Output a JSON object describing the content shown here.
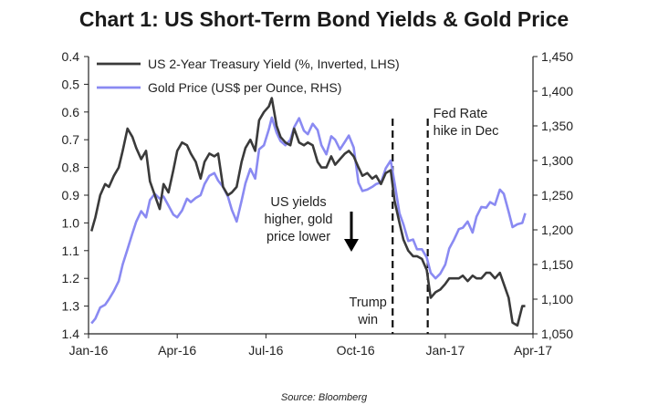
{
  "chart_data": {
    "type": "line",
    "title": "Chart 1: US Short-Term Bond Yields & Gold Price",
    "source": "Source: Bloomberg",
    "x_tick_labels": [
      "Jan-16",
      "Apr-16",
      "Jul-16",
      "Oct-16",
      "Jan-17",
      "Apr-17"
    ],
    "x_tick_dates": [
      "2016-01-01",
      "2016-04-01",
      "2016-07-01",
      "2016-10-01",
      "2017-01-01",
      "2017-04-01"
    ],
    "xlim": [
      "2016-01-01",
      "2017-04-01"
    ],
    "left_axis": {
      "inverted": true,
      "ylim": [
        0.4,
        1.4
      ],
      "tick_labels": [
        "0.4",
        "0.5",
        "0.6",
        "0.7",
        "0.8",
        "0.9",
        "1.0",
        "1.1",
        "1.2",
        "1.3",
        "1.4"
      ],
      "ticks": [
        0.4,
        0.5,
        0.6,
        0.7,
        0.8,
        0.9,
        1.0,
        1.1,
        1.2,
        1.3,
        1.4
      ]
    },
    "right_axis": {
      "ylim": [
        1050,
        1450
      ],
      "tick_labels": [
        "1,050",
        "1,100",
        "1,150",
        "1,200",
        "1,250",
        "1,300",
        "1,350",
        "1,400",
        "1,450"
      ],
      "ticks": [
        1050,
        1100,
        1150,
        1200,
        1250,
        1300,
        1350,
        1400,
        1450
      ]
    },
    "legend_placement": "top-left",
    "grid": false,
    "series": [
      {
        "name": "US 2-Year Treasury Yield (%, Inverted, LHS)",
        "axis": "left",
        "color": "#3a3a3a",
        "points": [
          [
            "2016-01-04",
            1.03
          ],
          [
            "2016-01-08",
            0.98
          ],
          [
            "2016-01-13",
            0.9
          ],
          [
            "2016-01-18",
            0.86
          ],
          [
            "2016-01-22",
            0.87
          ],
          [
            "2016-01-27",
            0.83
          ],
          [
            "2016-02-01",
            0.8
          ],
          [
            "2016-02-05",
            0.74
          ],
          [
            "2016-02-10",
            0.66
          ],
          [
            "2016-02-15",
            0.69
          ],
          [
            "2016-02-19",
            0.73
          ],
          [
            "2016-02-24",
            0.77
          ],
          [
            "2016-02-29",
            0.74
          ],
          [
            "2016-03-04",
            0.85
          ],
          [
            "2016-03-09",
            0.9
          ],
          [
            "2016-03-14",
            0.95
          ],
          [
            "2016-03-18",
            0.86
          ],
          [
            "2016-03-23",
            0.89
          ],
          [
            "2016-03-28",
            0.81
          ],
          [
            "2016-04-01",
            0.74
          ],
          [
            "2016-04-06",
            0.71
          ],
          [
            "2016-04-11",
            0.72
          ],
          [
            "2016-04-15",
            0.75
          ],
          [
            "2016-04-20",
            0.78
          ],
          [
            "2016-04-25",
            0.84
          ],
          [
            "2016-04-29",
            0.78
          ],
          [
            "2016-05-04",
            0.75
          ],
          [
            "2016-05-09",
            0.76
          ],
          [
            "2016-05-13",
            0.75
          ],
          [
            "2016-05-18",
            0.87
          ],
          [
            "2016-05-23",
            0.9
          ],
          [
            "2016-05-27",
            0.89
          ],
          [
            "2016-06-01",
            0.87
          ],
          [
            "2016-06-06",
            0.78
          ],
          [
            "2016-06-10",
            0.73
          ],
          [
            "2016-06-15",
            0.7
          ],
          [
            "2016-06-20",
            0.74
          ],
          [
            "2016-06-24",
            0.63
          ],
          [
            "2016-06-29",
            0.6
          ],
          [
            "2016-07-04",
            0.58
          ],
          [
            "2016-07-07",
            0.55
          ],
          [
            "2016-07-12",
            0.65
          ],
          [
            "2016-07-16",
            0.69
          ],
          [
            "2016-07-21",
            0.71
          ],
          [
            "2016-07-26",
            0.72
          ],
          [
            "2016-07-30",
            0.66
          ],
          [
            "2016-08-04",
            0.71
          ],
          [
            "2016-08-09",
            0.72
          ],
          [
            "2016-08-13",
            0.71
          ],
          [
            "2016-08-18",
            0.72
          ],
          [
            "2016-08-23",
            0.78
          ],
          [
            "2016-08-27",
            0.8
          ],
          [
            "2016-09-01",
            0.8
          ],
          [
            "2016-09-06",
            0.76
          ],
          [
            "2016-09-10",
            0.79
          ],
          [
            "2016-09-15",
            0.77
          ],
          [
            "2016-09-20",
            0.75
          ],
          [
            "2016-09-24",
            0.74
          ],
          [
            "2016-09-29",
            0.76
          ],
          [
            "2016-10-04",
            0.8
          ],
          [
            "2016-10-08",
            0.83
          ],
          [
            "2016-10-13",
            0.82
          ],
          [
            "2016-10-18",
            0.84
          ],
          [
            "2016-10-22",
            0.83
          ],
          [
            "2016-10-27",
            0.86
          ],
          [
            "2016-11-01",
            0.82
          ],
          [
            "2016-11-06",
            0.81
          ],
          [
            "2016-11-10",
            0.92
          ],
          [
            "2016-11-15",
            1.0
          ],
          [
            "2016-11-19",
            1.06
          ],
          [
            "2016-11-24",
            1.1
          ],
          [
            "2016-11-29",
            1.12
          ],
          [
            "2016-12-03",
            1.12
          ],
          [
            "2016-12-08",
            1.13
          ],
          [
            "2016-12-13",
            1.17
          ],
          [
            "2016-12-17",
            1.27
          ],
          [
            "2016-12-22",
            1.25
          ],
          [
            "2016-12-27",
            1.24
          ],
          [
            "2017-01-01",
            1.22
          ],
          [
            "2017-01-05",
            1.2
          ],
          [
            "2017-01-10",
            1.2
          ],
          [
            "2017-01-15",
            1.2
          ],
          [
            "2017-01-19",
            1.19
          ],
          [
            "2017-01-24",
            1.21
          ],
          [
            "2017-01-29",
            1.19
          ],
          [
            "2017-02-02",
            1.2
          ],
          [
            "2017-02-07",
            1.2
          ],
          [
            "2017-02-12",
            1.18
          ],
          [
            "2017-02-16",
            1.18
          ],
          [
            "2017-02-21",
            1.2
          ],
          [
            "2017-02-26",
            1.18
          ],
          [
            "2017-03-02",
            1.22
          ],
          [
            "2017-03-07",
            1.27
          ],
          [
            "2017-03-11",
            1.36
          ],
          [
            "2017-03-16",
            1.37
          ],
          [
            "2017-03-21",
            1.3
          ],
          [
            "2017-03-24",
            1.3
          ]
        ]
      },
      {
        "name": "Gold Price (US$ per Ounce, RHS)",
        "axis": "right",
        "color": "#8a8af2",
        "points": [
          [
            "2016-01-04",
            1065
          ],
          [
            "2016-01-08",
            1072
          ],
          [
            "2016-01-13",
            1088
          ],
          [
            "2016-01-18",
            1092
          ],
          [
            "2016-01-22",
            1100
          ],
          [
            "2016-01-27",
            1112
          ],
          [
            "2016-02-01",
            1126
          ],
          [
            "2016-02-05",
            1150
          ],
          [
            "2016-02-10",
            1172
          ],
          [
            "2016-02-15",
            1195
          ],
          [
            "2016-02-19",
            1212
          ],
          [
            "2016-02-24",
            1227
          ],
          [
            "2016-02-29",
            1218
          ],
          [
            "2016-03-04",
            1243
          ],
          [
            "2016-03-09",
            1252
          ],
          [
            "2016-03-14",
            1245
          ],
          [
            "2016-03-18",
            1248
          ],
          [
            "2016-03-23",
            1235
          ],
          [
            "2016-03-28",
            1222
          ],
          [
            "2016-04-01",
            1218
          ],
          [
            "2016-04-06",
            1228
          ],
          [
            "2016-04-11",
            1245
          ],
          [
            "2016-04-15",
            1240
          ],
          [
            "2016-04-20",
            1246
          ],
          [
            "2016-04-25",
            1250
          ],
          [
            "2016-04-29",
            1266
          ],
          [
            "2016-05-04",
            1278
          ],
          [
            "2016-05-09",
            1282
          ],
          [
            "2016-05-13",
            1271
          ],
          [
            "2016-05-18",
            1262
          ],
          [
            "2016-05-23",
            1248
          ],
          [
            "2016-05-27",
            1229
          ],
          [
            "2016-06-01",
            1212
          ],
          [
            "2016-06-06",
            1242
          ],
          [
            "2016-06-10",
            1267
          ],
          [
            "2016-06-15",
            1288
          ],
          [
            "2016-06-20",
            1274
          ],
          [
            "2016-06-24",
            1316
          ],
          [
            "2016-06-29",
            1322
          ],
          [
            "2016-07-04",
            1345
          ],
          [
            "2016-07-07",
            1362
          ],
          [
            "2016-07-12",
            1340
          ],
          [
            "2016-07-16",
            1328
          ],
          [
            "2016-07-21",
            1322
          ],
          [
            "2016-07-26",
            1330
          ],
          [
            "2016-07-30",
            1348
          ],
          [
            "2016-08-04",
            1361
          ],
          [
            "2016-08-09",
            1343
          ],
          [
            "2016-08-13",
            1338
          ],
          [
            "2016-08-18",
            1353
          ],
          [
            "2016-08-23",
            1344
          ],
          [
            "2016-08-27",
            1322
          ],
          [
            "2016-09-01",
            1309
          ],
          [
            "2016-09-06",
            1335
          ],
          [
            "2016-09-10",
            1330
          ],
          [
            "2016-09-15",
            1316
          ],
          [
            "2016-09-20",
            1327
          ],
          [
            "2016-09-24",
            1336
          ],
          [
            "2016-09-29",
            1319
          ],
          [
            "2016-10-04",
            1268
          ],
          [
            "2016-10-08",
            1256
          ],
          [
            "2016-10-13",
            1258
          ],
          [
            "2016-10-18",
            1262
          ],
          [
            "2016-10-22",
            1266
          ],
          [
            "2016-10-27",
            1268
          ],
          [
            "2016-11-01",
            1289
          ],
          [
            "2016-11-06",
            1300
          ],
          [
            "2016-11-10",
            1268
          ],
          [
            "2016-11-15",
            1224
          ],
          [
            "2016-11-19",
            1208
          ],
          [
            "2016-11-24",
            1184
          ],
          [
            "2016-11-29",
            1186
          ],
          [
            "2016-12-03",
            1172
          ],
          [
            "2016-12-08",
            1172
          ],
          [
            "2016-12-13",
            1160
          ],
          [
            "2016-12-17",
            1138
          ],
          [
            "2016-12-22",
            1130
          ],
          [
            "2016-12-27",
            1137
          ],
          [
            "2017-01-01",
            1150
          ],
          [
            "2017-01-05",
            1173
          ],
          [
            "2017-01-10",
            1186
          ],
          [
            "2017-01-15",
            1201
          ],
          [
            "2017-01-19",
            1203
          ],
          [
            "2017-01-24",
            1212
          ],
          [
            "2017-01-29",
            1196
          ],
          [
            "2017-02-02",
            1219
          ],
          [
            "2017-02-07",
            1233
          ],
          [
            "2017-02-12",
            1232
          ],
          [
            "2017-02-16",
            1240
          ],
          [
            "2017-02-21",
            1236
          ],
          [
            "2017-02-26",
            1258
          ],
          [
            "2017-03-02",
            1252
          ],
          [
            "2017-03-07",
            1226
          ],
          [
            "2017-03-11",
            1204
          ],
          [
            "2017-03-16",
            1208
          ],
          [
            "2017-03-21",
            1210
          ],
          [
            "2017-03-24",
            1224
          ]
        ]
      }
    ],
    "event_lines": [
      {
        "date": "2016-11-08",
        "label_lines": [
          "Trump",
          "win"
        ],
        "style": "dashed"
      },
      {
        "date": "2016-12-14",
        "label_lines": [
          "Fed Rate",
          "hike in Dec"
        ],
        "style": "dashed"
      }
    ],
    "annotations": [
      {
        "lines": [
          "US yields",
          "higher, gold",
          "price lower"
        ],
        "arrow": "down"
      }
    ]
  }
}
